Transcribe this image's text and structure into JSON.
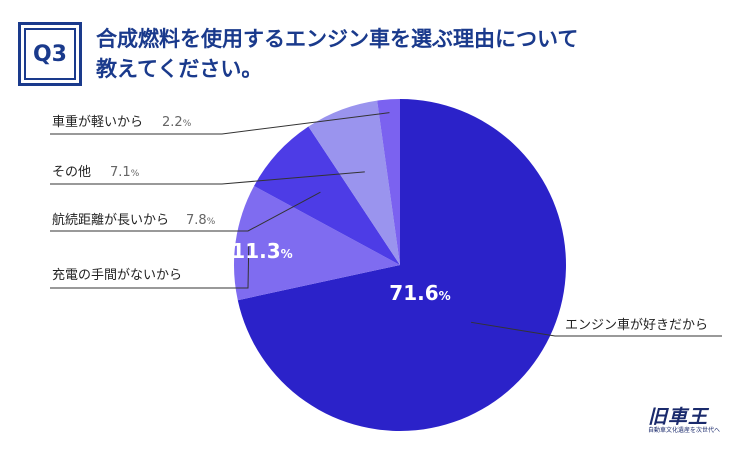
{
  "question": {
    "badge": "Q3",
    "title_line1": "合成燃料を使用するエンジン車を選ぶ理由について",
    "title_line2": "教えてください。"
  },
  "chart_data": {
    "type": "pie",
    "title": "合成燃料を使用するエンジン車を選ぶ理由について教えてください。",
    "slices": [
      {
        "label": "エンジン車が好きだから",
        "value": 71.6,
        "display": "71.6",
        "color": "#2b22c9"
      },
      {
        "label": "充電の手間がないから",
        "value": 11.3,
        "display": "11.3",
        "color": "#7f6cf0"
      },
      {
        "label": "航続距離が長いから",
        "value": 7.8,
        "display": "7.8",
        "color": "#4d3ce6"
      },
      {
        "label": "その他",
        "value": 7.1,
        "display": "7.1",
        "color": "#9a94ee"
      },
      {
        "label": "車重が軽いから",
        "value": 2.2,
        "display": "2.2",
        "color": "#7b62f0"
      }
    ],
    "unit": "%"
  },
  "logo": {
    "main": "旧車王",
    "sub": "自動車文化遺産を次世代へ"
  },
  "colors": {
    "accent": "#1a3a8c",
    "leader": "#333333"
  }
}
